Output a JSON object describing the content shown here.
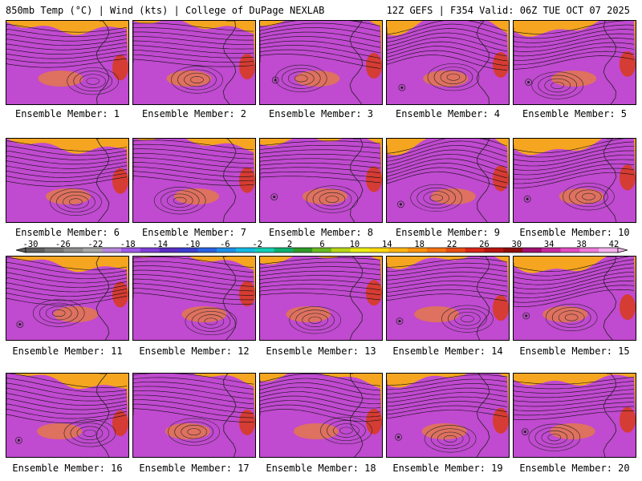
{
  "header": {
    "left": "850mb Temp (°C) | Wind (kts) | College of DuPage NEXLAB",
    "right": "12Z GEFS | F354 Valid: 06Z TUE OCT 07 2025"
  },
  "colorbar": {
    "ticks": [
      "-30",
      "-26",
      "-22",
      "-18",
      "-14",
      "-10",
      "-6",
      "-2",
      "2",
      "6",
      "10",
      "14",
      "18",
      "22",
      "26",
      "30",
      "34",
      "38",
      "42"
    ],
    "colors": [
      "#5e5e5e",
      "#777777",
      "#8f8f8f",
      "#a8a8a8",
      "#b586d9",
      "#a05ae8",
      "#7f3fd6",
      "#5a2fc4",
      "#3a3fd0",
      "#2a62e0",
      "#1e8fe6",
      "#16b8e0",
      "#14cfb4",
      "#10b070",
      "#2e9a28",
      "#6aba22",
      "#b8d418",
      "#eaee14",
      "#ffd90f",
      "#ffb512",
      "#ff9410",
      "#f47412",
      "#e84e14",
      "#d82818",
      "#b81410",
      "#8e0c0c",
      "#a01070",
      "#c82aa0",
      "#e04ec0",
      "#ee7ad8",
      "#f5b0ec"
    ]
  },
  "panels": [
    {
      "label": "Ensemble Member: 1"
    },
    {
      "label": "Ensemble Member: 2"
    },
    {
      "label": "Ensemble Member: 3"
    },
    {
      "label": "Ensemble Member: 4"
    },
    {
      "label": "Ensemble Member: 5"
    },
    {
      "label": "Ensemble Member: 6"
    },
    {
      "label": "Ensemble Member: 7"
    },
    {
      "label": "Ensemble Member: 8"
    },
    {
      "label": "Ensemble Member: 9"
    },
    {
      "label": "Ensemble Member: 10"
    },
    {
      "label": "Ensemble Member: 11"
    },
    {
      "label": "Ensemble Member: 12"
    },
    {
      "label": "Ensemble Member: 13"
    },
    {
      "label": "Ensemble Member: 14"
    },
    {
      "label": "Ensemble Member: 15"
    },
    {
      "label": "Ensemble Member: 16"
    },
    {
      "label": "Ensemble Member: 17"
    },
    {
      "label": "Ensemble Member: 18"
    },
    {
      "label": "Ensemble Member: 19"
    },
    {
      "label": "Ensemble Member: 20"
    }
  ]
}
